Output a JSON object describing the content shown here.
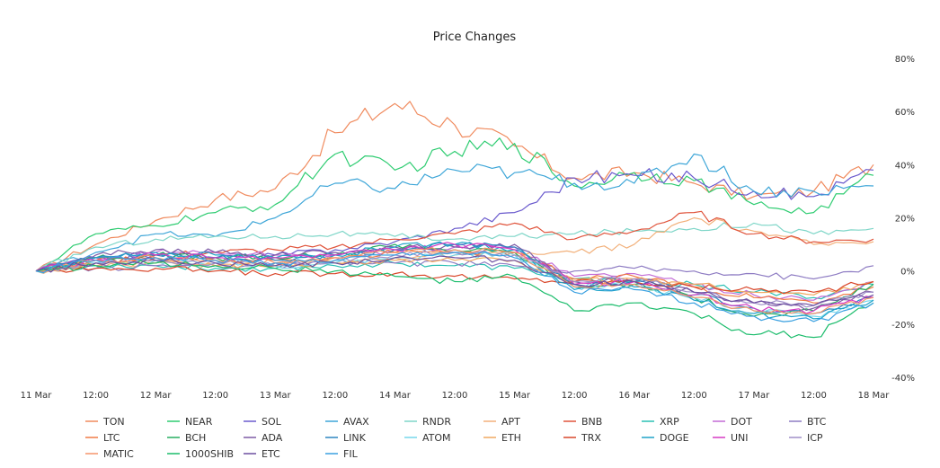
{
  "chart_data": {
    "type": "line",
    "title": "Price Changes",
    "xlabel": "",
    "ylabel": "",
    "ylim": [
      -40,
      80
    ],
    "y_ticks": [
      "80%",
      "60%",
      "40%",
      "20%",
      "0%",
      "-20%",
      "-40%"
    ],
    "y_tick_values": [
      80,
      60,
      40,
      20,
      0,
      -20,
      -40
    ],
    "x_ticks": [
      "11 Mar",
      "12:00",
      "12 Mar",
      "12:00",
      "13 Mar",
      "12:00",
      "14 Mar",
      "12:00",
      "15 Mar",
      "12:00",
      "16 Mar",
      "12:00",
      "17 Mar",
      "12:00",
      "18 Mar"
    ],
    "x_tick_hours": [
      0,
      12,
      24,
      36,
      48,
      60,
      72,
      84,
      96,
      108,
      120,
      132,
      144,
      156,
      168
    ],
    "x_unit": "hours since 11 Mar 00:00",
    "y_unit": "percent",
    "grid": false,
    "legend_position": "bottom",
    "x": [
      0,
      12,
      24,
      36,
      48,
      60,
      72,
      84,
      96,
      108,
      120,
      132,
      144,
      156,
      168
    ],
    "series": [
      {
        "name": "TON",
        "color": "#f08a5d",
        "values": [
          0,
          10,
          19,
          27,
          31,
          52,
          63,
          55,
          47,
          35,
          37,
          33,
          28,
          30,
          40
        ]
      },
      {
        "name": "NEAR",
        "color": "#2ecc71",
        "values": [
          0,
          14,
          17,
          22,
          25,
          44,
          38,
          45,
          48,
          32,
          37,
          34,
          25,
          22,
          36
        ]
      },
      {
        "name": "SOL",
        "color": "#6a5acd",
        "values": [
          0,
          5,
          6,
          5,
          6,
          8,
          11,
          16,
          22,
          35,
          36,
          35,
          30,
          28,
          38
        ]
      },
      {
        "name": "AVAX",
        "color": "#3ea6d8",
        "values": [
          0,
          7,
          14,
          13,
          20,
          33,
          31,
          38,
          37,
          33,
          33,
          44,
          30,
          30,
          32
        ]
      },
      {
        "name": "RNDR",
        "color": "#7fd6c8",
        "values": [
          0,
          9,
          12,
          13,
          13,
          14,
          13,
          12,
          13,
          14,
          15,
          16,
          18,
          14,
          16
        ]
      },
      {
        "name": "APT",
        "color": "#f2b07a",
        "values": [
          0,
          2,
          3,
          2,
          3,
          3,
          5,
          6,
          6,
          7,
          10,
          20,
          15,
          10,
          11
        ]
      },
      {
        "name": "BNB",
        "color": "#e0543c",
        "values": [
          0,
          3,
          6,
          7,
          8,
          9,
          12,
          14,
          18,
          12,
          15,
          22,
          14,
          11,
          12
        ]
      },
      {
        "name": "XRP",
        "color": "#2bc0b4",
        "values": [
          0,
          2,
          2,
          1,
          1,
          2,
          3,
          2,
          1,
          -3,
          -4,
          -5,
          -8,
          -10,
          -5
        ]
      },
      {
        "name": "DOT",
        "color": "#c26bd6",
        "values": [
          0,
          5,
          7,
          7,
          6,
          6,
          8,
          9,
          9,
          -2,
          -1,
          -5,
          -9,
          -11,
          -4
        ]
      },
      {
        "name": "BTC",
        "color": "#8e7cc3",
        "values": [
          0,
          1,
          2,
          2,
          2,
          3,
          3,
          3,
          2,
          0,
          1,
          0,
          -1,
          -3,
          2
        ]
      },
      {
        "name": "LTC",
        "color": "#f07a45",
        "values": [
          0,
          4,
          5,
          4,
          4,
          5,
          7,
          7,
          7,
          -3,
          -2,
          -6,
          -10,
          -12,
          -6
        ]
      },
      {
        "name": "BCH",
        "color": "#27ae60",
        "values": [
          0,
          5,
          6,
          5,
          5,
          6,
          10,
          8,
          7,
          -6,
          -5,
          -10,
          -17,
          -15,
          -5
        ]
      },
      {
        "name": "ADA",
        "color": "#7d5ba6",
        "values": [
          0,
          6,
          8,
          7,
          6,
          7,
          9,
          9,
          10,
          -4,
          -3,
          -8,
          -12,
          -14,
          -8
        ]
      },
      {
        "name": "LINK",
        "color": "#2e86c1",
        "values": [
          0,
          5,
          6,
          5,
          4,
          6,
          8,
          10,
          9,
          -5,
          -4,
          -9,
          -14,
          -16,
          -10
        ]
      },
      {
        "name": "ATOM",
        "color": "#76d7ea",
        "values": [
          0,
          3,
          4,
          3,
          2,
          3,
          5,
          6,
          6,
          -6,
          -5,
          -10,
          -15,
          -17,
          -11
        ]
      },
      {
        "name": "ETH",
        "color": "#f0a860",
        "values": [
          0,
          2,
          3,
          2,
          2,
          3,
          4,
          4,
          4,
          -4,
          -3,
          -5,
          -8,
          -9,
          -4
        ]
      },
      {
        "name": "TRX",
        "color": "#d9472b",
        "values": [
          0,
          1,
          1,
          0,
          -1,
          -1,
          -1,
          -2,
          -3,
          -4,
          -4,
          -6,
          -7,
          -8,
          -4
        ]
      },
      {
        "name": "DOGE",
        "color": "#1fa2c9",
        "values": [
          0,
          5,
          7,
          6,
          5,
          6,
          9,
          10,
          8,
          -7,
          -6,
          -11,
          -16,
          -18,
          -11
        ]
      },
      {
        "name": "UNI",
        "color": "#d63ac3",
        "values": [
          0,
          4,
          6,
          5,
          5,
          6,
          8,
          10,
          8,
          -5,
          -4,
          -9,
          -14,
          -15,
          -10
        ]
      },
      {
        "name": "ICP",
        "color": "#a08fc9",
        "values": [
          0,
          3,
          4,
          3,
          3,
          4,
          6,
          7,
          6,
          -4,
          -3,
          -8,
          -12,
          -13,
          -8
        ]
      },
      {
        "name": "MATIC",
        "color": "#f5946a",
        "values": [
          0,
          4,
          5,
          4,
          3,
          5,
          7,
          8,
          7,
          -6,
          -5,
          -10,
          -15,
          -16,
          -10
        ]
      },
      {
        "name": "1000SHIB",
        "color": "#1abc6b",
        "values": [
          0,
          2,
          3,
          2,
          1,
          0,
          -2,
          -4,
          -2,
          -15,
          -12,
          -16,
          -24,
          -25,
          -12
        ]
      },
      {
        "name": "ETC",
        "color": "#6c4fa0",
        "values": [
          0,
          3,
          4,
          3,
          2,
          3,
          5,
          5,
          4,
          -5,
          -4,
          -8,
          -12,
          -13,
          -9
        ]
      },
      {
        "name": "FIL",
        "color": "#3aa0e0",
        "values": [
          0,
          4,
          5,
          4,
          3,
          4,
          6,
          7,
          5,
          -8,
          -7,
          -12,
          -17,
          -19,
          -12
        ]
      }
    ]
  }
}
